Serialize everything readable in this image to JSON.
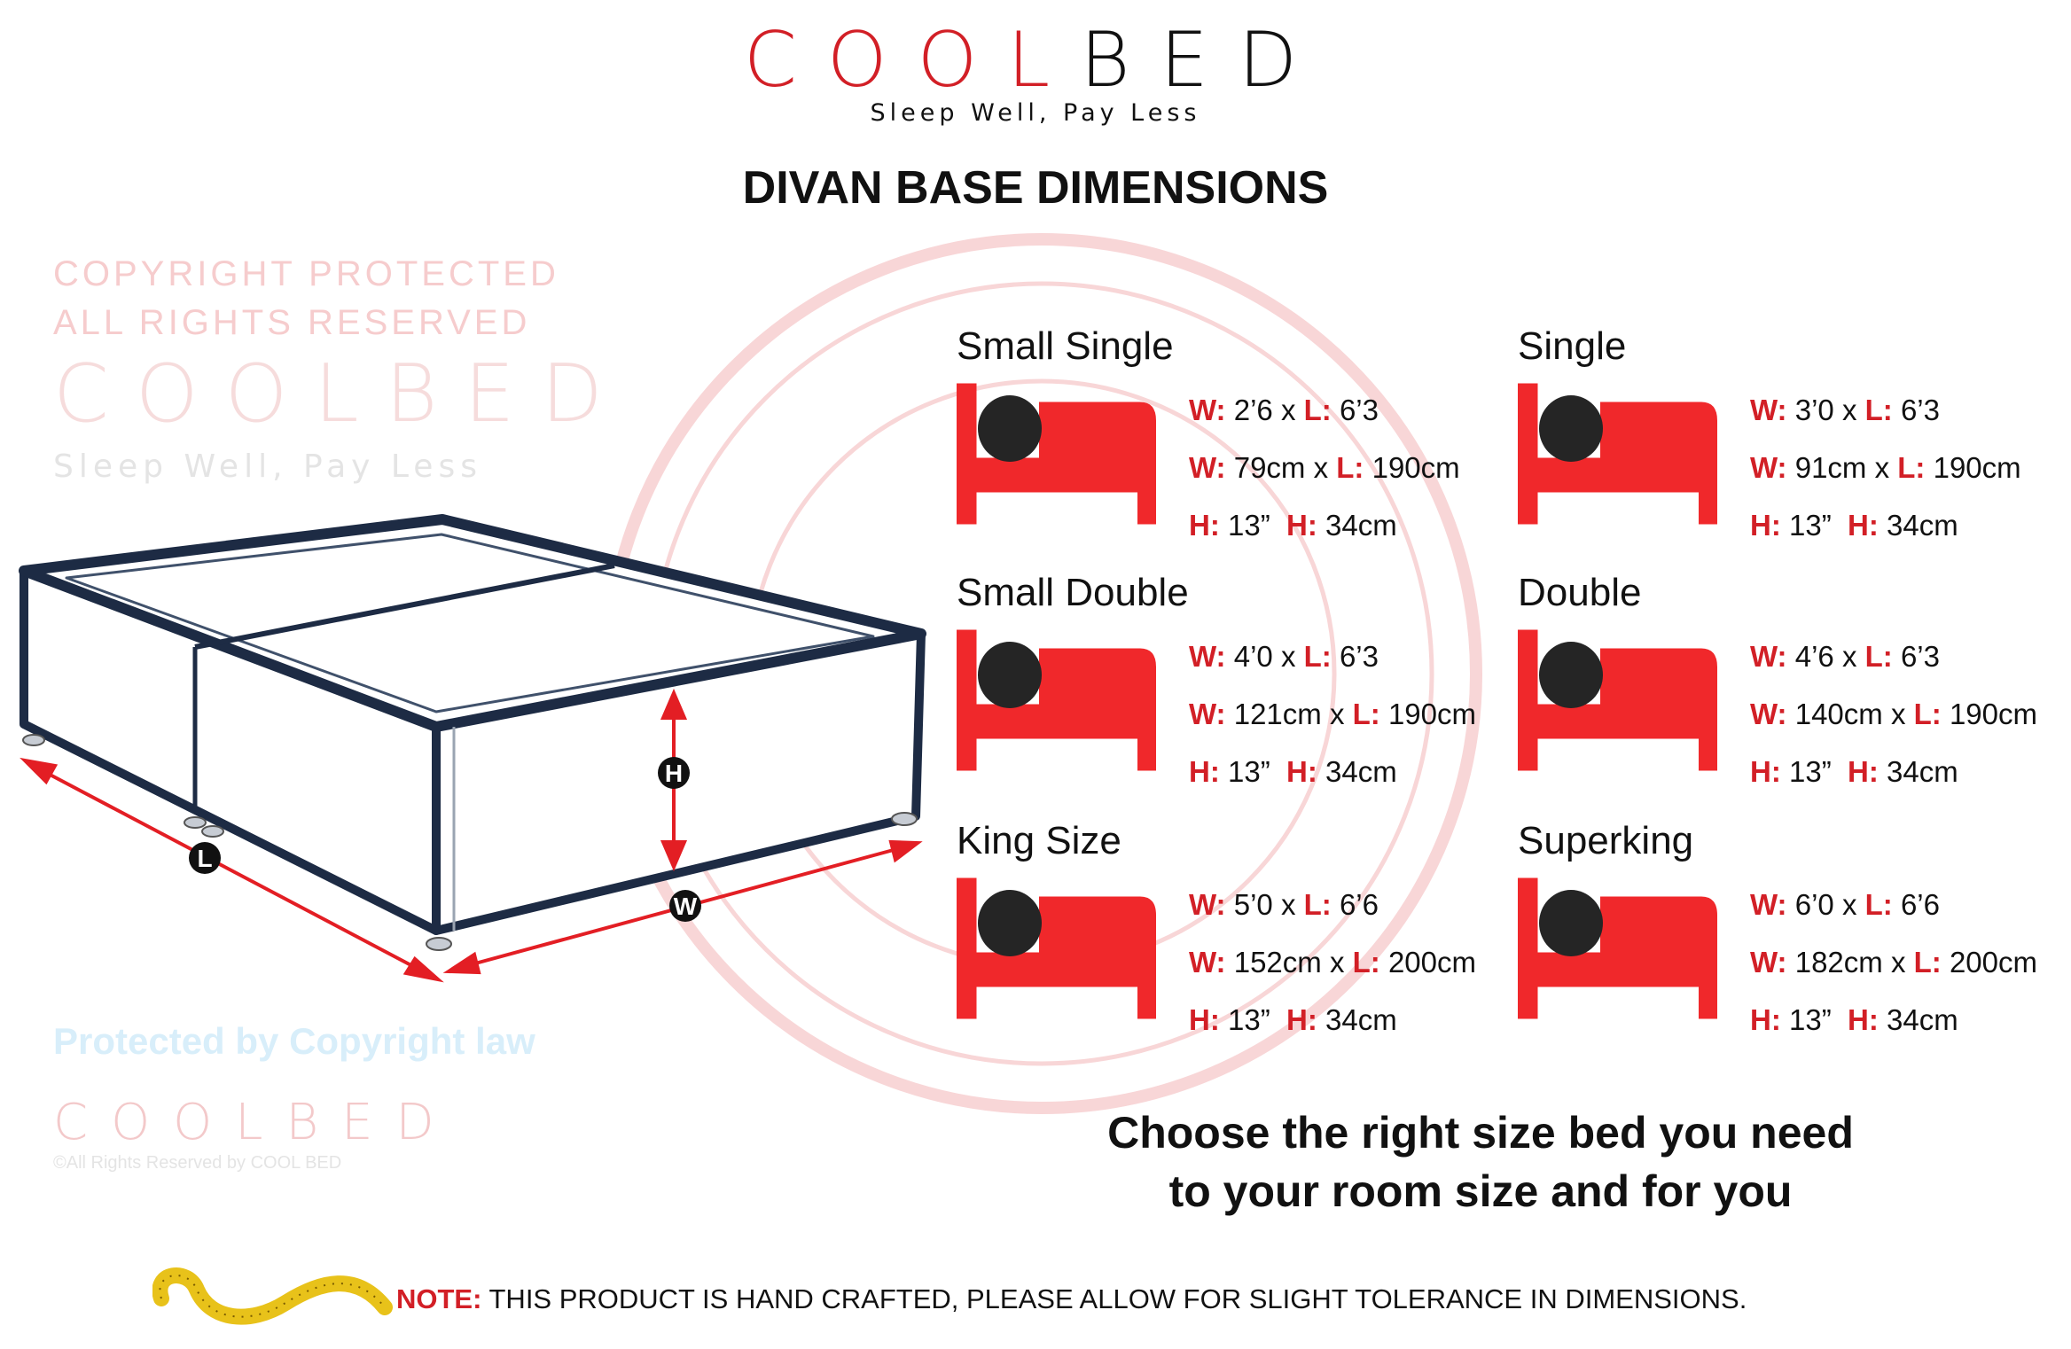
{
  "brand": {
    "logo_red": "COOL",
    "logo_black": "BED",
    "tagline": "Sleep Well, Pay Less",
    "accent": "#d21f26"
  },
  "title": "DIVAN BASE DIMENSIONS",
  "diagram": {
    "labels": {
      "length": "L",
      "width": "W",
      "height": "H"
    }
  },
  "sizes": [
    {
      "name": "Small Single",
      "imperial": {
        "w": "2’6",
        "l": "6’3"
      },
      "metric": {
        "w": "79cm",
        "l": "190cm"
      },
      "height": {
        "in": "13”",
        "cm": "34cm"
      }
    },
    {
      "name": "Single",
      "imperial": {
        "w": "3’0",
        "l": "6’3"
      },
      "metric": {
        "w": "91cm",
        "l": "190cm"
      },
      "height": {
        "in": "13”",
        "cm": "34cm"
      }
    },
    {
      "name": "Small Double",
      "imperial": {
        "w": "4’0",
        "l": "6’3"
      },
      "metric": {
        "w": "121cm",
        "l": "190cm"
      },
      "height": {
        "in": "13”",
        "cm": "34cm"
      }
    },
    {
      "name": "Double",
      "imperial": {
        "w": "4’6",
        "l": "6’3"
      },
      "metric": {
        "w": "140cm",
        "l": "190cm"
      },
      "height": {
        "in": "13”",
        "cm": "34cm"
      }
    },
    {
      "name": "King Size",
      "imperial": {
        "w": "5’0",
        "l": "6’6"
      },
      "metric": {
        "w": "152cm",
        "l": "200cm"
      },
      "height": {
        "in": "13”",
        "cm": "34cm"
      }
    },
    {
      "name": "Superking",
      "imperial": {
        "w": "6’0",
        "l": "6’6"
      },
      "metric": {
        "w": "182cm",
        "l": "200cm"
      },
      "height": {
        "in": "13”",
        "cm": "34cm"
      }
    }
  ],
  "spec_keys": {
    "w": "W:",
    "l": "L:",
    "h": "H:",
    "x": "x"
  },
  "choose": {
    "line1": "Choose the right size bed you need",
    "line2": "to your room size and for you"
  },
  "note": {
    "label": "NOTE:",
    "text": " THIS PRODUCT IS HAND CRAFTED, PLEASE ALLOW FOR SLIGHT TOLERANCE IN DIMENSIONS."
  },
  "watermark": {
    "top_arc": "COPYRIGHT PROTECTED",
    "bottom_arc": "ALL RIGHTS RESERVED",
    "center_logo": "COOLBED",
    "center_tagline": "Sleep Well, Pay Less",
    "center_note": "Protected by Copyright law",
    "corner_logo": "COOLBED",
    "corner_text": "©All Rights Reserved by COOL BED"
  },
  "icons": {
    "bed": "bed-person-icon",
    "tape": "tape-measure-icon"
  }
}
